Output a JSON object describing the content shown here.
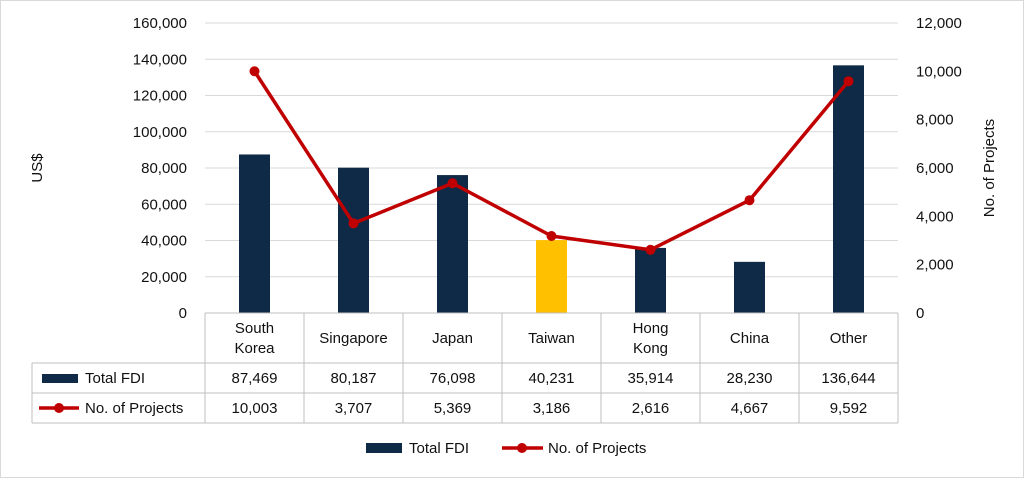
{
  "chart_data": {
    "type": "bar+line",
    "categories": [
      [
        "South",
        "Korea"
      ],
      [
        "Singapore"
      ],
      [
        "Japan"
      ],
      [
        "Taiwan"
      ],
      [
        "Hong",
        "Kong"
      ],
      [
        "China"
      ],
      [
        "Other"
      ]
    ],
    "series": [
      {
        "name": "Total FDI",
        "type": "bar",
        "axis": "left",
        "color": "#0f2a47",
        "highlight": {
          "index": 3,
          "color": "#ffc000"
        },
        "values": [
          87469,
          80187,
          76098,
          40231,
          35914,
          28230,
          136644
        ],
        "labels": [
          "87,469",
          "80,187",
          "76,098",
          "40,231",
          "35,914",
          "28,230",
          "136,644"
        ]
      },
      {
        "name": "No. of Projects",
        "type": "line",
        "axis": "right",
        "color": "#c00000",
        "values": [
          10003,
          3707,
          5369,
          3186,
          2616,
          4667,
          9592
        ],
        "labels": [
          "10,003",
          "3,707",
          "5,369",
          "3,186",
          "2,616",
          "4,667",
          "9,592"
        ]
      }
    ],
    "ylabel": "US$",
    "y2label": "No. of Projects",
    "ylim": [
      0,
      160000
    ],
    "y2lim": [
      0,
      12000
    ],
    "yticks": [
      "0",
      "20,000",
      "40,000",
      "60,000",
      "80,000",
      "100,000",
      "120,000",
      "140,000",
      "160,000"
    ],
    "y2ticks": [
      "0",
      "2,000",
      "4,000",
      "6,000",
      "8,000",
      "10,000",
      "12,000"
    ],
    "grid": true,
    "data_table": true,
    "legend_position": "bottom"
  }
}
